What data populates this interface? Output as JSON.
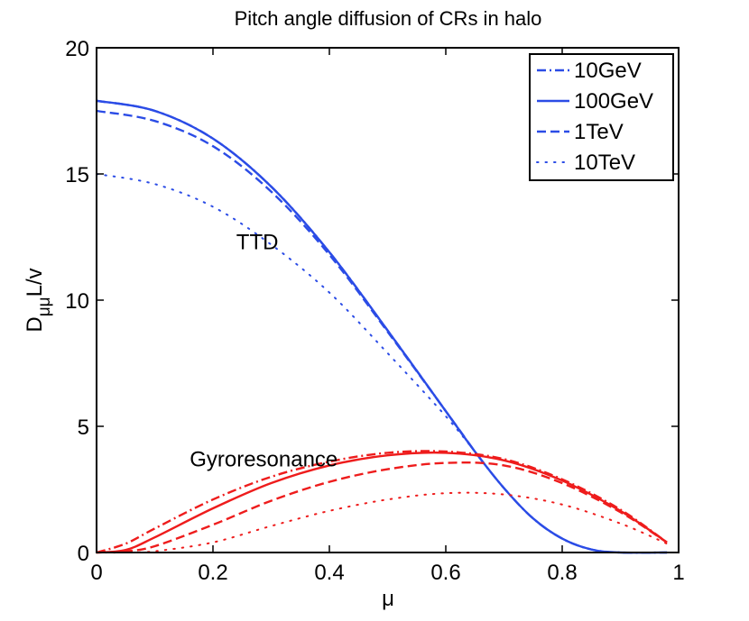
{
  "chart_data": {
    "type": "line",
    "title": "Pitch angle diffusion of CRs in halo",
    "xlabel": "μ",
    "ylabel_main": "D",
    "ylabel_sub": "μμ",
    "ylabel_suffix": "L/v",
    "xlim": [
      0,
      1
    ],
    "ylim": [
      0,
      20
    ],
    "xticks": [
      0,
      0.2,
      0.4,
      0.6,
      0.8,
      1
    ],
    "xtick_labels": [
      "0",
      "0.2",
      "0.4",
      "0.6",
      "0.8",
      "1"
    ],
    "yticks": [
      0,
      5,
      10,
      15,
      20
    ],
    "ytick_labels": [
      "0",
      "5",
      "10",
      "15",
      "20"
    ],
    "legend_position": "top-right",
    "legend": [
      {
        "label": "10GeV",
        "style": "dashdot"
      },
      {
        "label": "100GeV",
        "style": "solid"
      },
      {
        "label": "1TeV",
        "style": "dashed"
      },
      {
        "label": "10TeV",
        "style": "dotted"
      }
    ],
    "annotations": [
      {
        "text": "TTD",
        "x": 0.24,
        "y": 12.3
      },
      {
        "text": "Gyroresonance",
        "x": 0.16,
        "y": 3.7
      }
    ],
    "colors": {
      "ttd": "#2b4ce6",
      "gyro": "#ee1c1c"
    },
    "series": [
      {
        "group": "TTD",
        "name": "10GeV",
        "style": "dashdot",
        "x": [
          0,
          0.1,
          0.2,
          0.3,
          0.4,
          0.5,
          0.6,
          0.65,
          0.7,
          0.75,
          0.8,
          0.85,
          0.9,
          0.98
        ],
        "y": [
          17.9,
          17.5,
          16.4,
          14.5,
          11.9,
          8.8,
          5.6,
          4.0,
          2.55,
          1.35,
          0.55,
          0.12,
          0.0,
          0.0
        ]
      },
      {
        "group": "TTD",
        "name": "100GeV",
        "style": "solid",
        "x": [
          0,
          0.1,
          0.2,
          0.3,
          0.4,
          0.5,
          0.6,
          0.65,
          0.7,
          0.75,
          0.8,
          0.85,
          0.9,
          0.98
        ],
        "y": [
          17.9,
          17.5,
          16.4,
          14.5,
          11.9,
          8.8,
          5.6,
          4.0,
          2.55,
          1.35,
          0.55,
          0.12,
          0.0,
          0.0
        ]
      },
      {
        "group": "TTD",
        "name": "1TeV",
        "style": "dashed",
        "x": [
          0,
          0.1,
          0.2,
          0.3,
          0.4,
          0.5,
          0.6,
          0.65
        ],
        "y": [
          17.5,
          17.1,
          16.1,
          14.3,
          11.8,
          8.75,
          5.6,
          4.0
        ]
      },
      {
        "group": "TTD",
        "name": "10TeV",
        "style": "dotted",
        "x": [
          0,
          0.1,
          0.2,
          0.3,
          0.4,
          0.5,
          0.6,
          0.65
        ],
        "y": [
          15.0,
          14.6,
          13.7,
          12.2,
          10.3,
          7.9,
          5.4,
          4.0
        ]
      },
      {
        "group": "Gyroresonance",
        "name": "10GeV",
        "style": "dashdot",
        "x": [
          0,
          0.05,
          0.1,
          0.2,
          0.3,
          0.4,
          0.5,
          0.6,
          0.7,
          0.8,
          0.9,
          0.98
        ],
        "y": [
          0.0,
          0.35,
          0.95,
          2.1,
          3.0,
          3.6,
          3.95,
          4.0,
          3.7,
          2.9,
          1.7,
          0.4
        ]
      },
      {
        "group": "Gyroresonance",
        "name": "100GeV",
        "style": "solid",
        "x": [
          0,
          0.05,
          0.1,
          0.2,
          0.3,
          0.4,
          0.5,
          0.6,
          0.7,
          0.8,
          0.9,
          0.98
        ],
        "y": [
          0.0,
          0.1,
          0.6,
          1.75,
          2.75,
          3.45,
          3.85,
          3.95,
          3.65,
          2.85,
          1.65,
          0.4
        ]
      },
      {
        "group": "Gyroresonance",
        "name": "1TeV",
        "style": "dashed",
        "x": [
          0,
          0.05,
          0.1,
          0.2,
          0.3,
          0.4,
          0.5,
          0.6,
          0.7,
          0.8,
          0.9,
          0.98
        ],
        "y": [
          0.0,
          0.05,
          0.25,
          1.1,
          2.05,
          2.8,
          3.3,
          3.55,
          3.45,
          2.75,
          1.6,
          0.4
        ]
      },
      {
        "group": "Gyroresonance",
        "name": "10TeV",
        "style": "dotted",
        "x": [
          0,
          0.05,
          0.1,
          0.2,
          0.3,
          0.4,
          0.5,
          0.6,
          0.7,
          0.8,
          0.9,
          0.98
        ],
        "y": [
          0.0,
          0.0,
          0.05,
          0.4,
          1.05,
          1.65,
          2.1,
          2.35,
          2.3,
          1.9,
          1.15,
          0.35
        ]
      }
    ]
  }
}
